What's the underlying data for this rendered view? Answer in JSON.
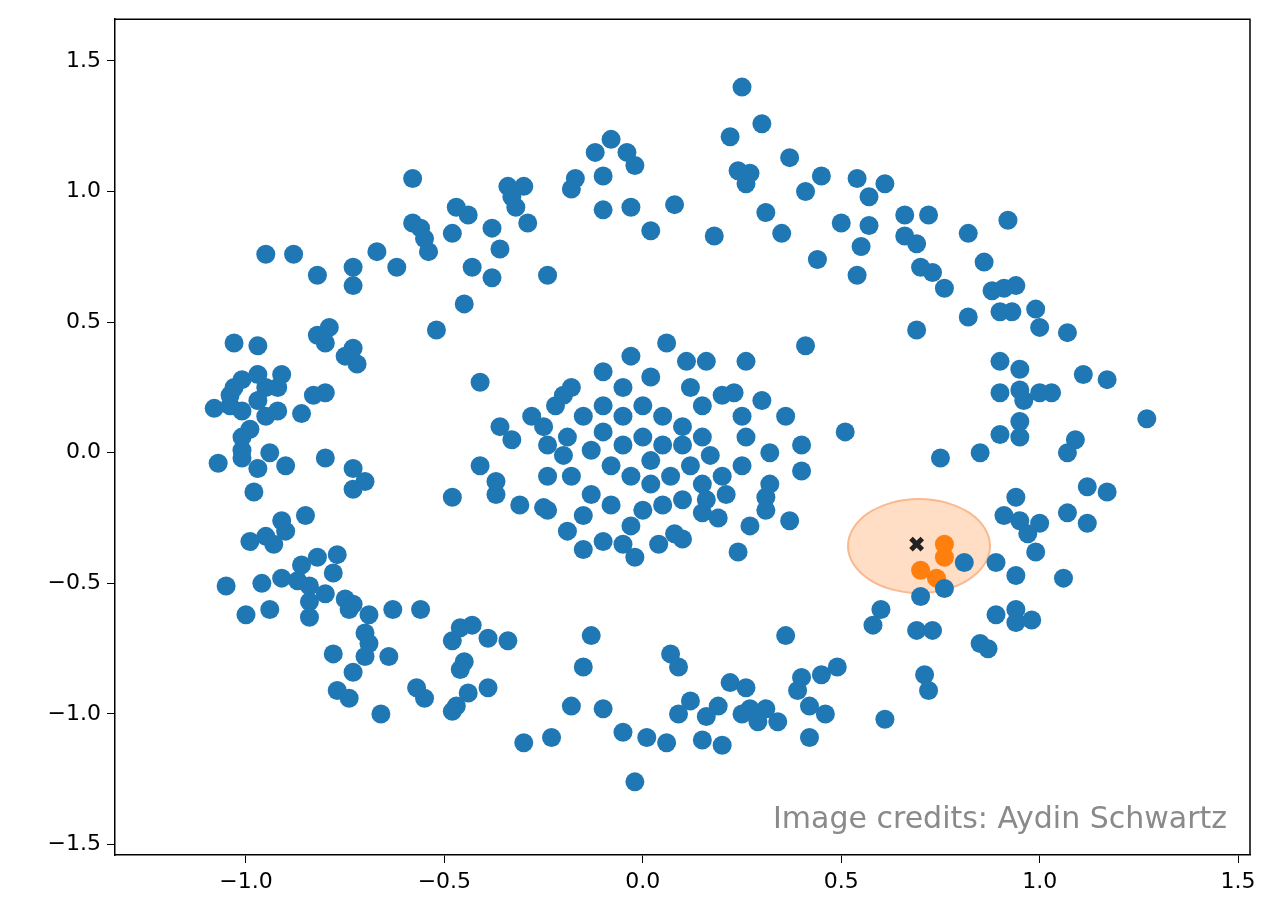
{
  "chart_data": {
    "type": "scatter",
    "xlim": [
      -1.33,
      1.53
    ],
    "ylim": [
      -1.54,
      1.66
    ],
    "xticks": [
      {
        "value": -1,
        "label": "−1.0"
      },
      {
        "value": -0.5,
        "label": "−0.5"
      },
      {
        "value": 0,
        "label": "0.0"
      },
      {
        "value": 0.5,
        "label": "0.5"
      },
      {
        "value": 1,
        "label": "1.0"
      },
      {
        "value": 1.5,
        "label": "1.5"
      }
    ],
    "yticks": [
      {
        "value": -1.5,
        "label": "−1.5"
      },
      {
        "value": -1,
        "label": "−1.0"
      },
      {
        "value": -0.5,
        "label": "−0.5"
      },
      {
        "value": 0,
        "label": "0.0"
      },
      {
        "value": 0.5,
        "label": "0.5"
      },
      {
        "value": 1,
        "label": "1.0"
      },
      {
        "value": 1.5,
        "label": "1.5"
      }
    ],
    "grid": false,
    "legend": false,
    "marker": "circle",
    "annotations": [
      "Image credits: Aydin Schwartz"
    ],
    "series": [
      {
        "color": "#1f77b4",
        "x": [
          0.25,
          0.3,
          -0.08,
          -0.12,
          -0.04,
          0.22,
          0.37,
          -0.02,
          -0.1,
          -0.17,
          -0.18,
          -0.34,
          -0.3,
          -0.33,
          -0.58,
          0.24,
          0.27,
          0.26,
          0.45,
          0.41,
          0.31,
          0.08,
          -0.03,
          -0.1,
          0.02,
          0.18,
          0.35,
          0.54,
          0.61,
          0.57,
          0.5,
          0.66,
          0.72,
          0.57,
          0.55,
          0.66,
          0.69,
          0.44,
          0.54,
          0.7,
          0.73,
          0.76,
          0.82,
          0.86,
          0.88,
          0.91,
          0.94,
          0.92,
          0.82,
          0.9,
          0.93,
          0.99,
          1.0,
          1.07,
          0.69,
          0.9,
          0.95,
          1.11,
          1.17,
          0.9,
          0.95,
          1.0,
          1.03,
          0.96,
          1.27,
          0.95,
          0.95,
          0.9,
          1.09,
          1.07,
          0.85,
          0.75,
          1.12,
          1.17,
          0.94,
          1.07,
          1.12,
          0.91,
          0.95,
          1.0,
          0.97,
          0.99,
          0.89,
          0.81,
          0.94,
          1.06,
          0.76,
          0.7,
          0.89,
          0.94,
          0.94,
          0.98,
          0.6,
          0.58,
          0.69,
          0.73,
          0.85,
          0.87,
          0.71,
          0.72,
          0.49,
          0.45,
          0.4,
          0.39,
          0.42,
          0.46,
          0.36,
          0.61,
          0.42,
          0.31,
          0.27,
          0.25,
          0.22,
          0.26,
          0.19,
          0.16,
          0.12,
          0.09,
          0.15,
          0.2,
          0.29,
          0.34,
          0.07,
          0.09,
          0.01,
          0.06,
          -0.05,
          -0.1,
          -0.02,
          -0.18,
          -0.23,
          -0.3,
          -0.13,
          -0.15,
          -0.34,
          -0.39,
          -0.43,
          -0.46,
          -0.48,
          -0.45,
          -0.46,
          -0.39,
          -0.44,
          -0.47,
          -0.48,
          -0.55,
          -0.57,
          -0.66,
          -0.74,
          -0.77,
          -0.78,
          -0.7,
          -0.7,
          -0.69,
          -0.64,
          -0.73,
          -0.56,
          -0.63,
          -0.69,
          -0.74,
          -0.8,
          -0.75,
          -0.73,
          -0.78,
          -0.82,
          -0.77,
          -0.84,
          -0.87,
          -0.84,
          -0.84,
          -0.94,
          -0.96,
          -1.0,
          -1.05,
          -0.86,
          -0.91,
          -0.95,
          -0.93,
          -0.9,
          -0.91,
          -0.99,
          -0.85,
          -1.07,
          -0.98,
          -1.01,
          -0.9,
          -0.97,
          -1.01,
          -0.94,
          -0.8,
          -0.73,
          -0.7,
          -0.73,
          -1.01,
          -0.99,
          -0.95,
          -1.01,
          -1.04,
          -1.08,
          -1.04,
          -1.03,
          -1.01,
          -0.95,
          -0.92,
          -0.97,
          -0.92,
          -0.86,
          -0.8,
          -0.83,
          -0.91,
          -0.97,
          -1.03,
          -0.97,
          -0.8,
          -0.73,
          -0.72,
          -0.75,
          -0.82,
          -0.79,
          -0.52,
          -0.41,
          -0.73,
          -0.73,
          -0.82,
          -0.67,
          -0.62,
          -0.58,
          -0.56,
          -0.55,
          -0.54,
          -0.48,
          -0.47,
          -0.44,
          -0.38,
          -0.36,
          -0.38,
          -0.43,
          -0.45,
          -0.24,
          -0.32,
          -0.29,
          -0.88,
          -0.95,
          0.06,
          -0.03,
          0.11,
          0.16,
          0.26,
          0.41,
          0.23,
          0.3,
          0.36,
          0.51,
          0.4,
          0.4,
          0.32,
          0.32,
          0.31,
          0.31,
          0.37,
          0.27,
          0.24,
          0.19,
          0.15,
          0.1,
          0.08,
          0.04,
          -0.02,
          -0.05,
          -0.1,
          -0.15,
          -0.19,
          -0.24,
          -0.25,
          -0.31,
          -0.37,
          -0.37,
          -0.41,
          -0.48,
          -0.33,
          -0.36,
          -0.28,
          -0.25,
          -0.22,
          -0.18,
          -0.1,
          -0.05,
          0.02,
          0.12,
          0.2,
          0.25,
          0.26,
          0.25,
          0.2,
          0.15,
          0.1,
          0.05,
          0.0,
          -0.08,
          -0.13,
          -0.18,
          -0.2,
          -0.19,
          -0.15,
          -0.1,
          -0.05,
          0.0,
          0.05,
          0.1,
          0.15,
          0.17,
          0.12,
          0.07,
          0.02,
          -0.03,
          -0.08,
          -0.13,
          -0.1,
          -0.05,
          0.0,
          0.05,
          0.02,
          0.1,
          0.15,
          -0.2,
          -0.24,
          -0.15,
          -0.24,
          -0.03,
          0.16,
          0.21
        ],
        "values": [
          1.4,
          1.26,
          1.2,
          1.15,
          1.15,
          1.21,
          1.13,
          1.1,
          1.06,
          1.05,
          1.01,
          1.02,
          1.02,
          0.98,
          1.05,
          1.08,
          1.07,
          1.03,
          1.06,
          1.0,
          0.92,
          0.95,
          0.94,
          0.93,
          0.85,
          0.83,
          0.84,
          1.05,
          1.03,
          0.98,
          0.88,
          0.91,
          0.91,
          0.87,
          0.79,
          0.83,
          0.8,
          0.74,
          0.68,
          0.71,
          0.69,
          0.63,
          0.84,
          0.73,
          0.62,
          0.63,
          0.64,
          0.89,
          0.52,
          0.54,
          0.54,
          0.55,
          0.48,
          0.46,
          0.47,
          0.35,
          0.32,
          0.3,
          0.28,
          0.23,
          0.24,
          0.23,
          0.23,
          0.2,
          0.13,
          0.12,
          0.06,
          0.07,
          0.05,
          0.0,
          0.0,
          -0.02,
          -0.13,
          -0.15,
          -0.17,
          -0.23,
          -0.27,
          -0.24,
          -0.26,
          -0.27,
          -0.31,
          -0.38,
          -0.42,
          -0.42,
          -0.47,
          -0.48,
          -0.52,
          -0.55,
          -0.62,
          -0.6,
          -0.65,
          -0.64,
          -0.6,
          -0.66,
          -0.68,
          -0.68,
          -0.73,
          -0.75,
          -0.85,
          -0.91,
          -0.82,
          -0.85,
          -0.86,
          -0.91,
          -0.97,
          -1.0,
          -0.7,
          -1.02,
          -1.09,
          -0.98,
          -0.98,
          -1.0,
          -0.88,
          -0.9,
          -0.97,
          -1.01,
          -0.95,
          -1.0,
          -1.1,
          -1.12,
          -1.03,
          -1.03,
          -0.77,
          -0.82,
          -1.09,
          -1.11,
          -1.07,
          -0.98,
          -1.26,
          -0.97,
          -1.09,
          -1.11,
          -0.7,
          -0.82,
          -0.72,
          -0.71,
          -0.66,
          -0.67,
          -0.72,
          -0.8,
          -0.83,
          -0.9,
          -0.92,
          -0.97,
          -0.99,
          -0.94,
          -0.9,
          -1.0,
          -0.94,
          -0.91,
          -0.77,
          -0.78,
          -0.69,
          -0.73,
          -0.78,
          -0.84,
          -0.6,
          -0.6,
          -0.62,
          -0.6,
          -0.54,
          -0.56,
          -0.58,
          -0.46,
          -0.4,
          -0.39,
          -0.51,
          -0.49,
          -0.57,
          -0.63,
          -0.6,
          -0.5,
          -0.62,
          -0.51,
          -0.43,
          -0.48,
          -0.32,
          -0.35,
          -0.3,
          -0.26,
          -0.34,
          -0.24,
          -0.04,
          -0.15,
          -0.02,
          -0.05,
          -0.06,
          0.01,
          0.0,
          -0.02,
          -0.06,
          -0.11,
          -0.14,
          0.06,
          0.09,
          0.14,
          0.16,
          0.18,
          0.17,
          0.22,
          0.25,
          0.28,
          0.25,
          0.25,
          0.2,
          0.16,
          0.15,
          0.23,
          0.22,
          0.3,
          0.3,
          0.42,
          0.41,
          0.42,
          0.4,
          0.34,
          0.37,
          0.45,
          0.48,
          0.47,
          0.27,
          0.71,
          0.64,
          0.68,
          0.77,
          0.71,
          0.88,
          0.86,
          0.82,
          0.77,
          0.84,
          0.94,
          0.91,
          0.86,
          0.78,
          0.67,
          0.71,
          0.57,
          0.68,
          0.94,
          0.88,
          0.76,
          0.76,
          0.42,
          0.37,
          0.35,
          0.35,
          0.35,
          0.41,
          0.23,
          0.2,
          0.14,
          0.08,
          0.03,
          -0.07,
          0.0,
          -0.12,
          -0.17,
          -0.22,
          -0.26,
          -0.28,
          -0.38,
          -0.25,
          -0.23,
          -0.33,
          -0.31,
          -0.35,
          -0.4,
          -0.35,
          -0.34,
          -0.37,
          -0.3,
          -0.22,
          -0.21,
          -0.2,
          -0.16,
          -0.11,
          -0.05,
          -0.17,
          0.05,
          0.1,
          0.14,
          0.1,
          0.18,
          0.25,
          0.31,
          0.25,
          0.29,
          0.25,
          0.22,
          0.14,
          0.06,
          -0.05,
          -0.09,
          -0.12,
          -0.18,
          -0.2,
          -0.22,
          -0.2,
          -0.16,
          -0.09,
          -0.01,
          0.06,
          0.14,
          0.18,
          0.14,
          0.18,
          0.14,
          0.1,
          0.06,
          -0.01,
          -0.05,
          -0.09,
          -0.12,
          -0.09,
          -0.05,
          0.01,
          0.08,
          0.03,
          0.06,
          0.03,
          -0.03,
          0.03,
          0.18,
          0.22,
          0.03,
          -0.24,
          -0.09,
          -0.28,
          -0.18,
          -0.16
        ]
      },
      {
        "color": "#ff7f0e",
        "x": [
          0.76,
          0.76,
          0.7,
          0.74
        ],
        "values": [
          -0.35,
          -0.4,
          -0.45,
          -0.48
        ]
      },
      {
        "color": "#222222",
        "marker": "cross",
        "x": [
          0.69
        ],
        "values": [
          -0.35
        ]
      }
    ]
  }
}
